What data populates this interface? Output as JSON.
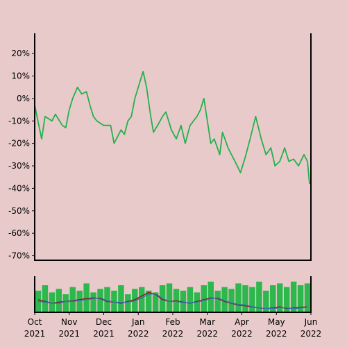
{
  "chart_data": [
    {
      "type": "line",
      "color": "#22b14c",
      "xlim": [
        0,
        8
      ],
      "ylim": [
        -72,
        29
      ],
      "yticks": [
        {
          "value": 20,
          "label": "20%"
        },
        {
          "value": 10,
          "label": "10%"
        },
        {
          "value": 0,
          "label": "0%"
        },
        {
          "value": -10,
          "label": "-10%"
        },
        {
          "value": -20,
          "label": "-20%"
        },
        {
          "value": -30,
          "label": "-30%"
        },
        {
          "value": -40,
          "label": "-40%"
        },
        {
          "value": -50,
          "label": "-50%"
        },
        {
          "value": -60,
          "label": "-60%"
        },
        {
          "value": -70,
          "label": "-70%"
        }
      ],
      "x": [
        0,
        0.2,
        0.3,
        0.5,
        0.6,
        0.8,
        0.9,
        1.0,
        1.1,
        1.24,
        1.36,
        1.5,
        1.6,
        1.7,
        1.8,
        2.0,
        2.2,
        2.3,
        2.5,
        2.6,
        2.7,
        2.8,
        2.9,
        3.0,
        3.14,
        3.24,
        3.36,
        3.44,
        3.56,
        3.7,
        3.8,
        3.96,
        4.1,
        4.24,
        4.36,
        4.5,
        4.7,
        4.8,
        4.9,
        5.0,
        5.1,
        5.2,
        5.36,
        5.44,
        5.6,
        5.8,
        5.96,
        6.1,
        6.24,
        6.4,
        6.56,
        6.7,
        6.84,
        6.96,
        7.1,
        7.24,
        7.36,
        7.5,
        7.64,
        7.8,
        7.9,
        7.96
      ],
      "values": [
        -3,
        -18,
        -8,
        -10,
        -7,
        -12,
        -13,
        -5,
        0,
        5,
        2,
        3,
        -3,
        -8,
        -10,
        -12,
        -12,
        -20,
        -14,
        -16,
        -10,
        -8,
        0,
        5,
        12,
        5,
        -8,
        -15,
        -12,
        -8,
        -6,
        -14,
        -18,
        -12,
        -20,
        -12,
        -8,
        -5,
        0,
        -10,
        -20,
        -18,
        -25,
        -15,
        -22,
        -28,
        -33,
        -26,
        -18,
        -8,
        -18,
        -25,
        -22,
        -30,
        -28,
        -22,
        -28,
        -27,
        -30,
        -25,
        -28,
        -38
      ]
    },
    {
      "type": "volume",
      "xlim": [
        0,
        8
      ],
      "ylim": [
        0,
        100
      ],
      "xticks": [
        {
          "value": 0,
          "label": "Oct 2021"
        },
        {
          "value": 1,
          "label": "Nov 2021"
        },
        {
          "value": 2,
          "label": "Dec 2021"
        },
        {
          "value": 3,
          "label": "Jan 2022"
        },
        {
          "value": 4,
          "label": "Feb 2022"
        },
        {
          "value": 5,
          "label": "Mar 2022"
        },
        {
          "value": 6,
          "label": "Apr 2022"
        },
        {
          "value": 7,
          "label": "May 2022"
        },
        {
          "value": 8,
          "label": "Jun 2022"
        }
      ],
      "x": [
        0.1,
        0.3,
        0.5,
        0.7,
        0.9,
        1.1,
        1.3,
        1.5,
        1.7,
        1.9,
        2.1,
        2.3,
        2.5,
        2.7,
        2.9,
        3.1,
        3.3,
        3.5,
        3.7,
        3.9,
        4.1,
        4.3,
        4.5,
        4.7,
        4.9,
        5.1,
        5.3,
        5.5,
        5.7,
        5.9,
        6.1,
        6.3,
        6.5,
        6.7,
        6.9,
        7.1,
        7.3,
        7.5,
        7.7,
        7.9
      ],
      "series": [
        {
          "color": "#2db84d",
          "values": [
            60,
            75,
            55,
            65,
            50,
            70,
            60,
            80,
            55,
            65,
            70,
            60,
            75,
            50,
            65,
            70,
            60,
            55,
            75,
            80,
            65,
            60,
            70,
            55,
            75,
            85,
            60,
            70,
            65,
            80,
            75,
            70,
            85,
            60,
            75,
            80,
            70,
            85,
            75,
            80
          ]
        },
        {
          "color": "#8b1a1a",
          "values": [
            35,
            30,
            25,
            28,
            30,
            32,
            35,
            38,
            40,
            38,
            30,
            28,
            25,
            30,
            35,
            45,
            55,
            50,
            35,
            30,
            32,
            28,
            25,
            30,
            35,
            40,
            38,
            30,
            25,
            20,
            18,
            15,
            12,
            10,
            12,
            15,
            10,
            12,
            14,
            15
          ]
        },
        {
          "color": "#3a6fb0",
          "values": [
            30,
            28,
            25,
            25,
            30,
            30,
            33,
            35,
            38,
            40,
            32,
            28,
            27,
            28,
            32,
            40,
            50,
            52,
            38,
            30,
            30,
            27,
            26,
            28,
            33,
            38,
            40,
            32,
            26,
            22,
            20,
            16,
            12,
            10,
            10,
            13,
            12,
            10,
            12,
            14
          ]
        }
      ]
    }
  ]
}
